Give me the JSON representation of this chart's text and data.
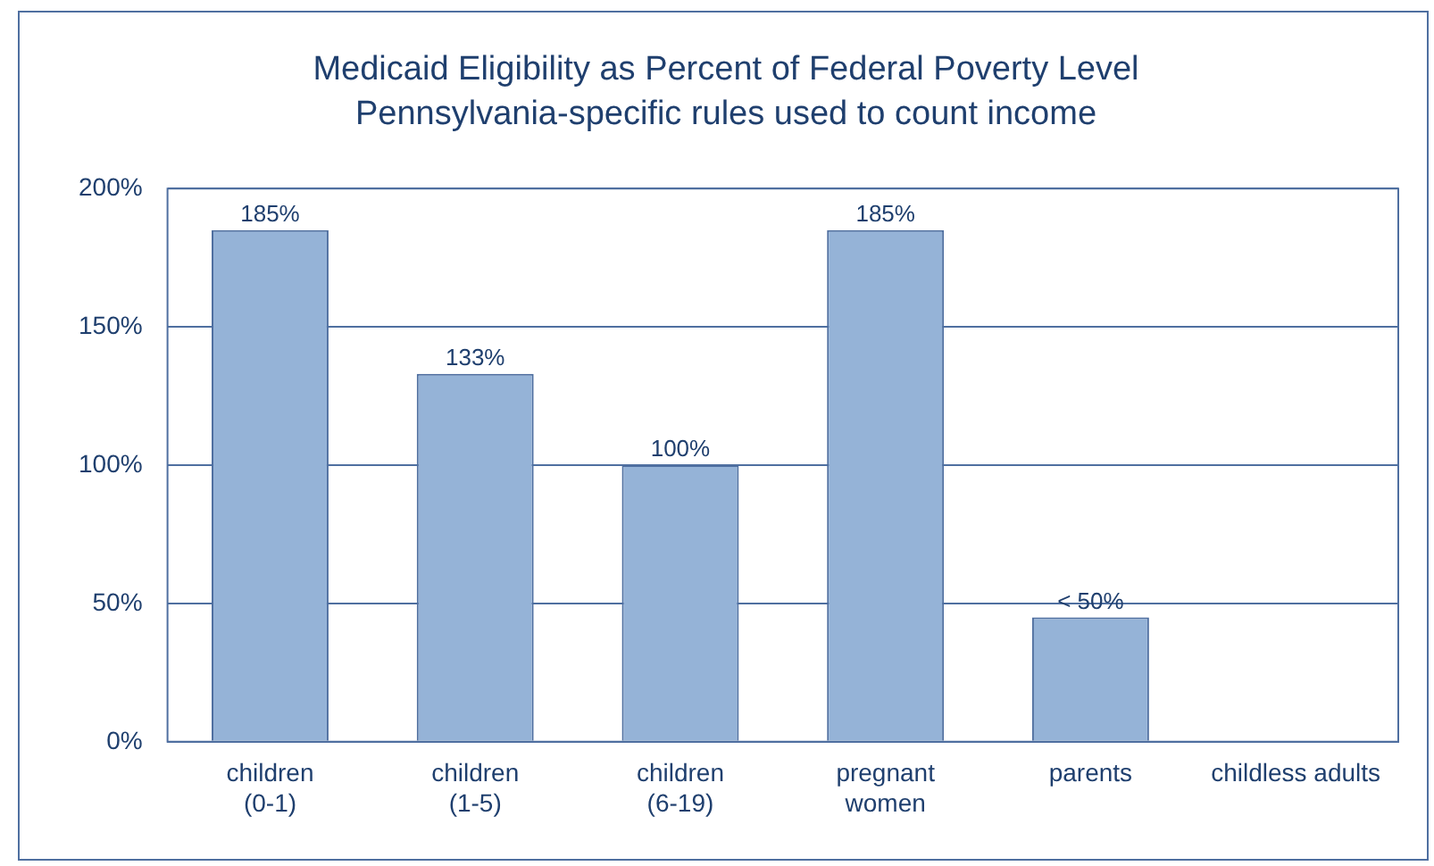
{
  "chart_data": {
    "type": "bar",
    "title": "Medicaid Eligibility as Percent of Federal Poverty Level",
    "subtitle": "Pennsylvania-specific rules used to count income",
    "categories": [
      "children\n(0-1)",
      "children\n(1-5)",
      "children\n(6-19)",
      "pregnant\nwomen",
      "parents",
      "childless adults"
    ],
    "values": [
      185,
      133,
      100,
      185,
      45,
      0
    ],
    "value_labels": [
      "185%",
      "133%",
      "100%",
      "185%",
      "< 50%",
      null
    ],
    "color": "#95b3d7",
    "ylim": [
      0,
      200
    ],
    "yticks": [
      {
        "value": 0,
        "label": "0%"
      },
      {
        "value": 50,
        "label": "50%"
      },
      {
        "value": 100,
        "label": "100%"
      },
      {
        "value": 150,
        "label": "150%"
      },
      {
        "value": 200,
        "label": "200%"
      }
    ],
    "grid": "y",
    "legend": false
  }
}
